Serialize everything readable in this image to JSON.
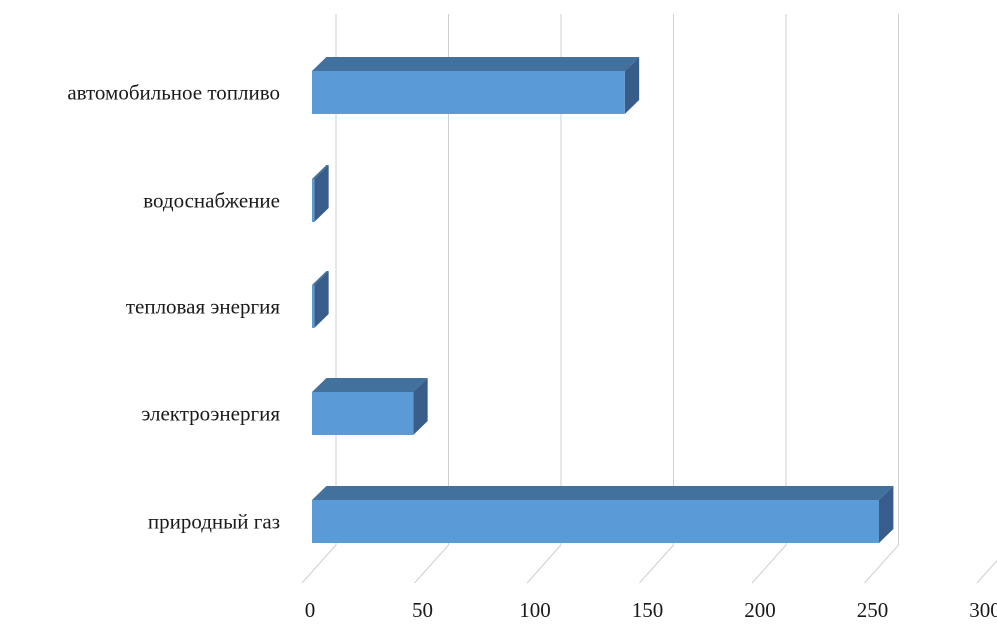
{
  "chart_data": {
    "type": "bar",
    "orientation": "horizontal",
    "style": "3d",
    "categories": [
      "автомобильное топливо",
      "водоснабжение",
      "тепловая энергия",
      "электроэнергия",
      "природный газ"
    ],
    "values": [
      139,
      1,
      1,
      45,
      252
    ],
    "ticks": [
      0,
      50,
      100,
      150,
      200,
      250,
      300
    ],
    "tick_labels": [
      "0",
      "50",
      "100",
      "150",
      "200",
      "250",
      "300"
    ],
    "xlim": [
      0,
      300
    ],
    "grid": true,
    "legend": "none",
    "title": "",
    "xlabel": "",
    "ylabel": "",
    "colors": {
      "bar_front": "#5b9bd5",
      "bar_top": "#41719c",
      "bar_side": "#385d8a",
      "grid": "#cfcfcf"
    }
  }
}
